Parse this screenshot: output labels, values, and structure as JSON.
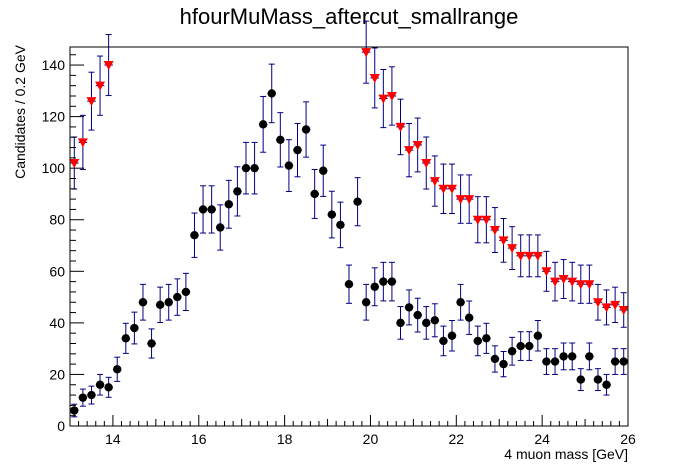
{
  "chart_data": {
    "type": "scatter",
    "title": "hfourMuMass_aftercut_smallrange",
    "xlabel": "4 muon mass [GeV]",
    "ylabel": "Candidates / 0.2 GeV",
    "xlim": [
      13,
      26
    ],
    "ylim": [
      0,
      147
    ],
    "grid": false,
    "legend": "none",
    "x_ticks": [
      "14",
      "16",
      "18",
      "20",
      "22",
      "24",
      "26"
    ],
    "y_ticks": [
      "0",
      "20",
      "40",
      "60",
      "80",
      "100",
      "120",
      "140"
    ],
    "series": [
      {
        "marker": "circle",
        "color": "#000000",
        "error_color": "#000080",
        "x": [
          13.1,
          13.3,
          13.5,
          13.7,
          13.9,
          14.1,
          14.3,
          14.5,
          14.7,
          14.9,
          15.1,
          15.3,
          15.5,
          15.7,
          15.9,
          16.1,
          16.3,
          16.5,
          16.7,
          16.9,
          17.1,
          17.3,
          17.5,
          17.7,
          17.9,
          18.1,
          18.3,
          18.5,
          18.7,
          18.9,
          19.1,
          19.3,
          19.5,
          19.7,
          19.9,
          20.1,
          20.3,
          20.5,
          20.7,
          20.9,
          21.1,
          21.3,
          21.5,
          21.7,
          21.9,
          22.1,
          22.3,
          22.5,
          22.7,
          22.9,
          23.1,
          23.3,
          23.5,
          23.7,
          23.9,
          24.1,
          24.3,
          24.5,
          24.7,
          24.9,
          25.1,
          25.3,
          25.5,
          25.7,
          25.9
        ],
        "y": [
          6,
          11,
          12,
          16,
          15,
          22,
          34,
          38,
          48,
          32,
          47,
          48,
          50,
          52,
          74,
          84,
          84,
          77,
          86,
          91,
          100,
          100,
          117,
          129,
          111,
          101,
          107,
          115,
          90,
          99,
          82,
          78,
          55,
          87,
          48,
          54,
          56,
          56,
          40,
          46,
          43,
          40,
          41,
          33,
          35,
          48,
          42,
          33,
          34,
          26,
          24,
          29,
          31,
          31,
          35,
          25,
          25,
          27,
          27,
          18,
          27,
          18,
          16,
          25,
          25
        ]
      },
      {
        "marker": "triangle-down",
        "color": "#ff0000",
        "error_color": "#000080",
        "x": [
          13.1,
          13.3,
          13.5,
          13.7,
          13.9,
          19.9,
          20.1,
          20.3,
          20.5,
          20.7,
          20.9,
          21.1,
          21.3,
          21.5,
          21.7,
          21.9,
          22.1,
          22.3,
          22.5,
          22.7,
          22.9,
          23.1,
          23.3,
          23.5,
          23.7,
          23.9,
          24.1,
          24.3,
          24.5,
          24.7,
          24.9,
          25.1,
          25.3,
          25.5,
          25.7,
          25.9
        ],
        "y": [
          102,
          110,
          126,
          132,
          140,
          145,
          135,
          127,
          128,
          116,
          107,
          109,
          102,
          95,
          92,
          92,
          88,
          88,
          80,
          80,
          76,
          72,
          69,
          66,
          66,
          66,
          60,
          56,
          57,
          56,
          55,
          55,
          48,
          46,
          47,
          45
        ]
      }
    ]
  }
}
